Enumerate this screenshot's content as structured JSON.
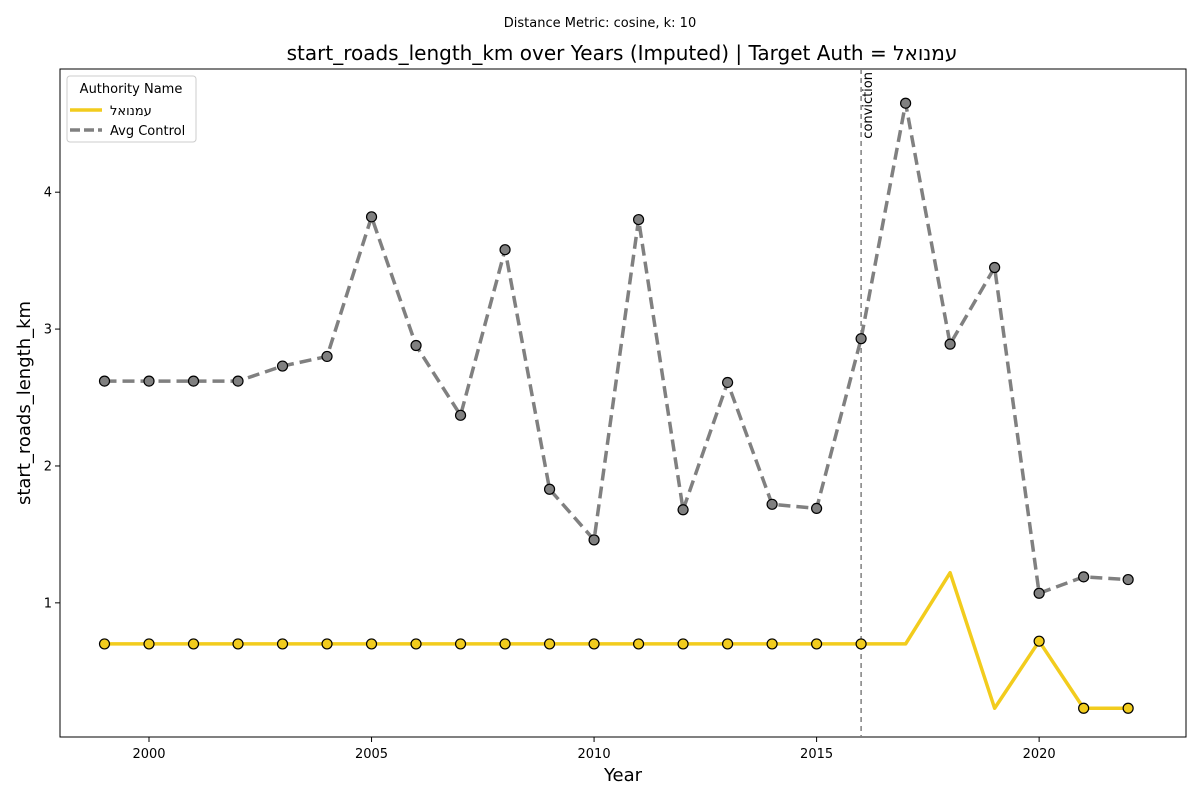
{
  "chart_data": {
    "type": "line",
    "suptitle": "Distance Metric: cosine, k: 10",
    "title": "start_roads_length_km over Years (Imputed) | Target Auth = עמנואל",
    "xlabel": "Year",
    "ylabel": "start_roads_length_km",
    "xlim": [
      1998.0,
      2023.3
    ],
    "ylim": [
      0.02,
      4.9
    ],
    "xticks": [
      2000,
      2005,
      2010,
      2015,
      2020
    ],
    "yticks": [
      1,
      2,
      3,
      4
    ],
    "grid": false,
    "legend": {
      "title": "Authority Name",
      "placement": "top-left"
    },
    "annotations": [
      {
        "type": "vline",
        "x": 2016,
        "label": "conviction",
        "color": "#808080"
      }
    ],
    "series": [
      {
        "name": "עמנואל",
        "color": "#f2cc1d",
        "style": "solid",
        "x": [
          1999,
          2000,
          2001,
          2002,
          2003,
          2004,
          2005,
          2006,
          2007,
          2008,
          2009,
          2010,
          2011,
          2012,
          2013,
          2014,
          2015,
          2016,
          2017,
          2018,
          2019,
          2020,
          2021,
          2022
        ],
        "y": [
          0.7,
          0.7,
          0.7,
          0.7,
          0.7,
          0.7,
          0.7,
          0.7,
          0.7,
          0.7,
          0.7,
          0.7,
          0.7,
          0.7,
          0.7,
          0.7,
          0.7,
          0.7,
          0.7,
          1.22,
          0.23,
          0.72,
          0.23,
          0.23
        ],
        "markers": [
          true,
          true,
          true,
          true,
          true,
          true,
          true,
          true,
          true,
          true,
          true,
          true,
          true,
          true,
          true,
          true,
          true,
          true,
          false,
          false,
          false,
          true,
          true,
          true
        ]
      },
      {
        "name": "Avg Control",
        "color": "#808080",
        "style": "dashed",
        "x": [
          1999,
          2000,
          2001,
          2002,
          2003,
          2004,
          2005,
          2006,
          2007,
          2008,
          2009,
          2010,
          2011,
          2012,
          2013,
          2014,
          2015,
          2016,
          2017,
          2018,
          2019,
          2020,
          2021,
          2022
        ],
        "y": [
          2.62,
          2.62,
          2.62,
          2.62,
          2.73,
          2.8,
          3.82,
          2.88,
          2.37,
          3.58,
          1.83,
          1.46,
          3.8,
          1.68,
          2.61,
          1.72,
          1.69,
          2.93,
          4.65,
          2.89,
          3.45,
          1.07,
          1.19,
          1.17
        ],
        "markers": [
          true,
          true,
          true,
          true,
          true,
          true,
          true,
          true,
          true,
          true,
          true,
          true,
          true,
          true,
          true,
          true,
          true,
          true,
          true,
          true,
          true,
          true,
          true,
          true
        ]
      }
    ]
  }
}
